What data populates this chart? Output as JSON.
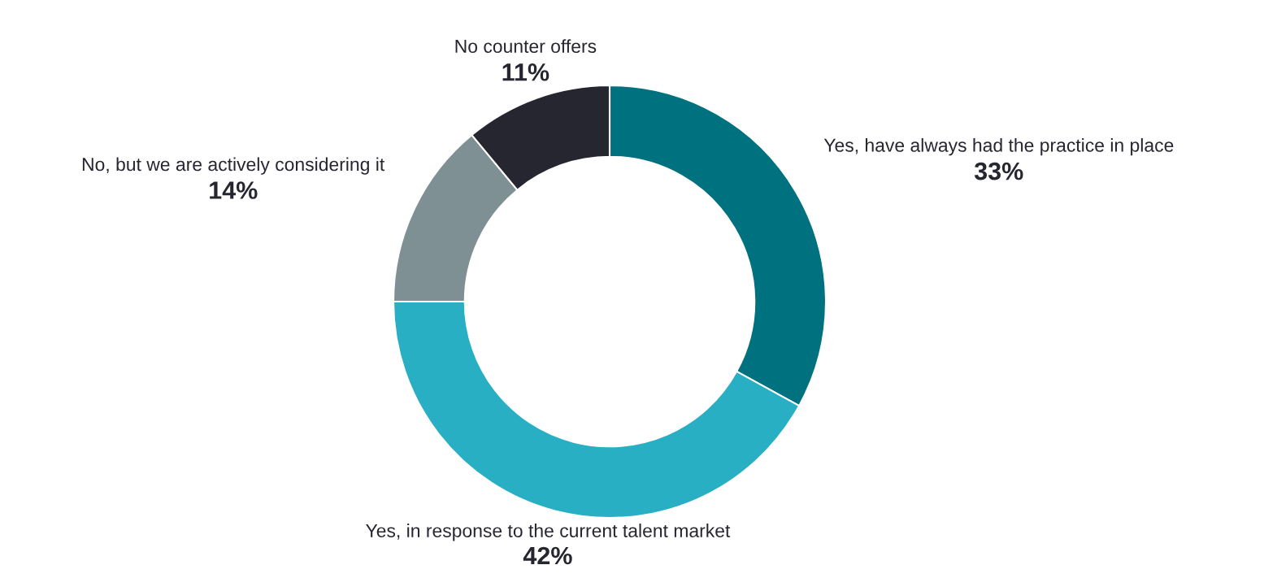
{
  "chart_data": {
    "type": "donut",
    "categories": [
      "Yes, have always had the practice in place",
      "Yes, in response to the current talent market",
      "No, but we are actively considering it",
      "No counter offers"
    ],
    "values": [
      33,
      42,
      14,
      11
    ],
    "colors": [
      "#00717f",
      "#29afc4",
      "#7f9095",
      "#262631"
    ],
    "value_labels": [
      "33%",
      "42%",
      "14%",
      "11%"
    ]
  }
}
